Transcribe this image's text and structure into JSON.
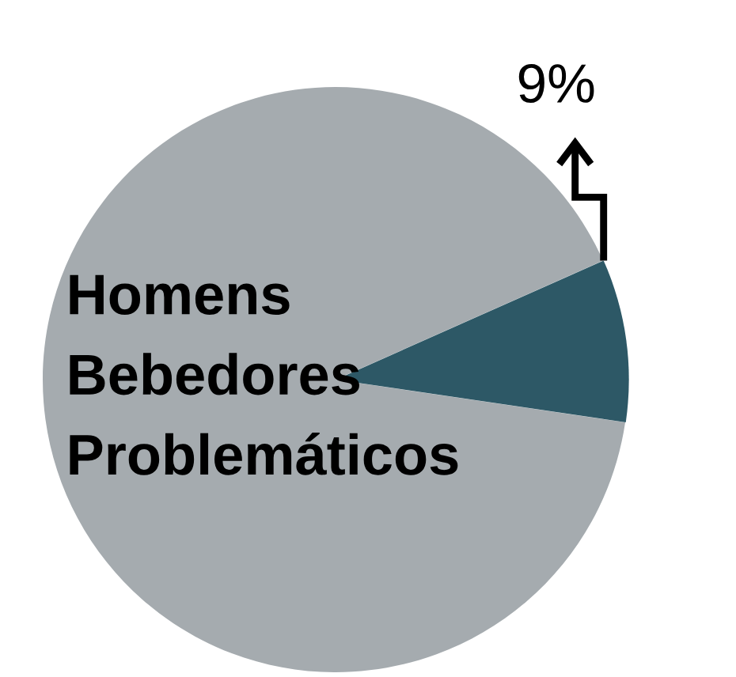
{
  "chart_data": {
    "type": "pie",
    "categories": [
      "Homens\nBebedores\nProblemáticos",
      null
    ],
    "values": [
      91,
      9
    ],
    "colors": [
      "#a5abaf",
      "#2d5866"
    ],
    "value_labels": [
      null,
      "9%"
    ]
  }
}
